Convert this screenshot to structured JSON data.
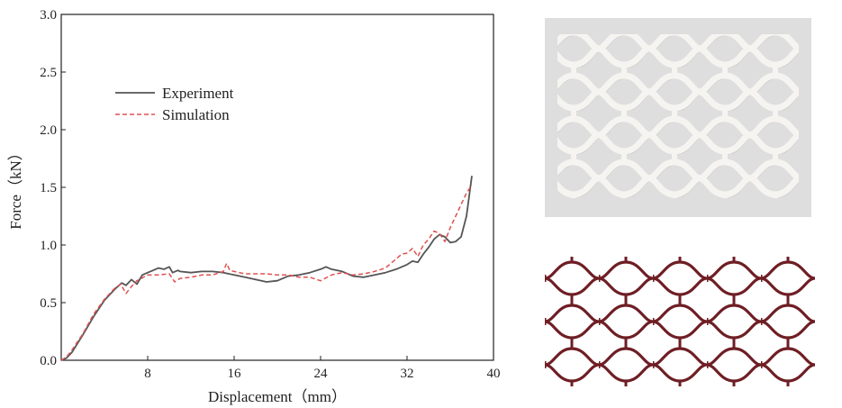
{
  "chart_data": {
    "type": "line",
    "title": "",
    "xlabel": "Displacement（mm）",
    "ylabel": "Force（kN）",
    "xlim": [
      0,
      40
    ],
    "ylim": [
      0,
      3.0
    ],
    "xticks": [
      8,
      16,
      24,
      32,
      40
    ],
    "yticks": [
      0.0,
      0.5,
      1.0,
      1.5,
      2.0,
      2.5,
      3.0
    ],
    "xtick_labels": [
      "8",
      "16",
      "24",
      "32",
      "40"
    ],
    "ytick_labels": [
      "0.0",
      "0.5",
      "1.0",
      "1.5",
      "2.0",
      "2.5",
      "3.0"
    ],
    "legend_position": "upper-left",
    "grid": false,
    "series": [
      {
        "name": "Experiment",
        "color": "#555555",
        "style": "solid",
        "points": [
          [
            0,
            0
          ],
          [
            0.5,
            0.02
          ],
          [
            1,
            0.07
          ],
          [
            2,
            0.22
          ],
          [
            3,
            0.38
          ],
          [
            4,
            0.52
          ],
          [
            5,
            0.62
          ],
          [
            5.6,
            0.67
          ],
          [
            6,
            0.65
          ],
          [
            6.5,
            0.7
          ],
          [
            7,
            0.66
          ],
          [
            7.5,
            0.74
          ],
          [
            8,
            0.76
          ],
          [
            8.5,
            0.78
          ],
          [
            9,
            0.8
          ],
          [
            9.5,
            0.79
          ],
          [
            10,
            0.81
          ],
          [
            10.3,
            0.76
          ],
          [
            10.8,
            0.78
          ],
          [
            11,
            0.77
          ],
          [
            12,
            0.76
          ],
          [
            13,
            0.77
          ],
          [
            14,
            0.77
          ],
          [
            15,
            0.76
          ],
          [
            16,
            0.74
          ],
          [
            17,
            0.72
          ],
          [
            18,
            0.7
          ],
          [
            19,
            0.68
          ],
          [
            20,
            0.69
          ],
          [
            21,
            0.73
          ],
          [
            22,
            0.74
          ],
          [
            23,
            0.76
          ],
          [
            24,
            0.79
          ],
          [
            24.5,
            0.81
          ],
          [
            25,
            0.79
          ],
          [
            26,
            0.77
          ],
          [
            27,
            0.73
          ],
          [
            28,
            0.72
          ],
          [
            29,
            0.74
          ],
          [
            30,
            0.76
          ],
          [
            31,
            0.79
          ],
          [
            32,
            0.83
          ],
          [
            32.5,
            0.86
          ],
          [
            33,
            0.85
          ],
          [
            33.5,
            0.92
          ],
          [
            34,
            0.98
          ],
          [
            34.5,
            1.05
          ],
          [
            35,
            1.09
          ],
          [
            35.5,
            1.07
          ],
          [
            36,
            1.02
          ],
          [
            36.5,
            1.03
          ],
          [
            37,
            1.07
          ],
          [
            37.5,
            1.25
          ],
          [
            38,
            1.6
          ]
        ]
      },
      {
        "name": "Simulation",
        "color": "#e05050",
        "style": "dashed",
        "points": [
          [
            0,
            0
          ],
          [
            0.5,
            0.03
          ],
          [
            1,
            0.09
          ],
          [
            2,
            0.23
          ],
          [
            3,
            0.4
          ],
          [
            4,
            0.53
          ],
          [
            5,
            0.63
          ],
          [
            5.5,
            0.66
          ],
          [
            6,
            0.58
          ],
          [
            6.5,
            0.64
          ],
          [
            7,
            0.69
          ],
          [
            8,
            0.74
          ],
          [
            9,
            0.74
          ],
          [
            10,
            0.75
          ],
          [
            10.5,
            0.68
          ],
          [
            11,
            0.71
          ],
          [
            12,
            0.72
          ],
          [
            13,
            0.74
          ],
          [
            14,
            0.74
          ],
          [
            15,
            0.77
          ],
          [
            15.3,
            0.84
          ],
          [
            15.6,
            0.78
          ],
          [
            16,
            0.77
          ],
          [
            17,
            0.75
          ],
          [
            18,
            0.75
          ],
          [
            19,
            0.75
          ],
          [
            20,
            0.74
          ],
          [
            21,
            0.74
          ],
          [
            22,
            0.72
          ],
          [
            23,
            0.72
          ],
          [
            24,
            0.69
          ],
          [
            25,
            0.74
          ],
          [
            26,
            0.76
          ],
          [
            27,
            0.74
          ],
          [
            28,
            0.75
          ],
          [
            29,
            0.77
          ],
          [
            30,
            0.8
          ],
          [
            31,
            0.88
          ],
          [
            31.5,
            0.92
          ],
          [
            32,
            0.93
          ],
          [
            32.5,
            0.97
          ],
          [
            33,
            0.9
          ],
          [
            33.5,
            1.0
          ],
          [
            34,
            1.05
          ],
          [
            34.5,
            1.12
          ],
          [
            35,
            1.1
          ],
          [
            35.5,
            1.03
          ],
          [
            36,
            1.15
          ],
          [
            36.5,
            1.25
          ],
          [
            37,
            1.35
          ],
          [
            37.5,
            1.45
          ],
          [
            38,
            1.52
          ]
        ]
      }
    ]
  },
  "colors": {
    "photo_lattice": "#f4f2ef",
    "photo_background": "#dcdcdc",
    "sim_lattice": "#6e1e24"
  }
}
